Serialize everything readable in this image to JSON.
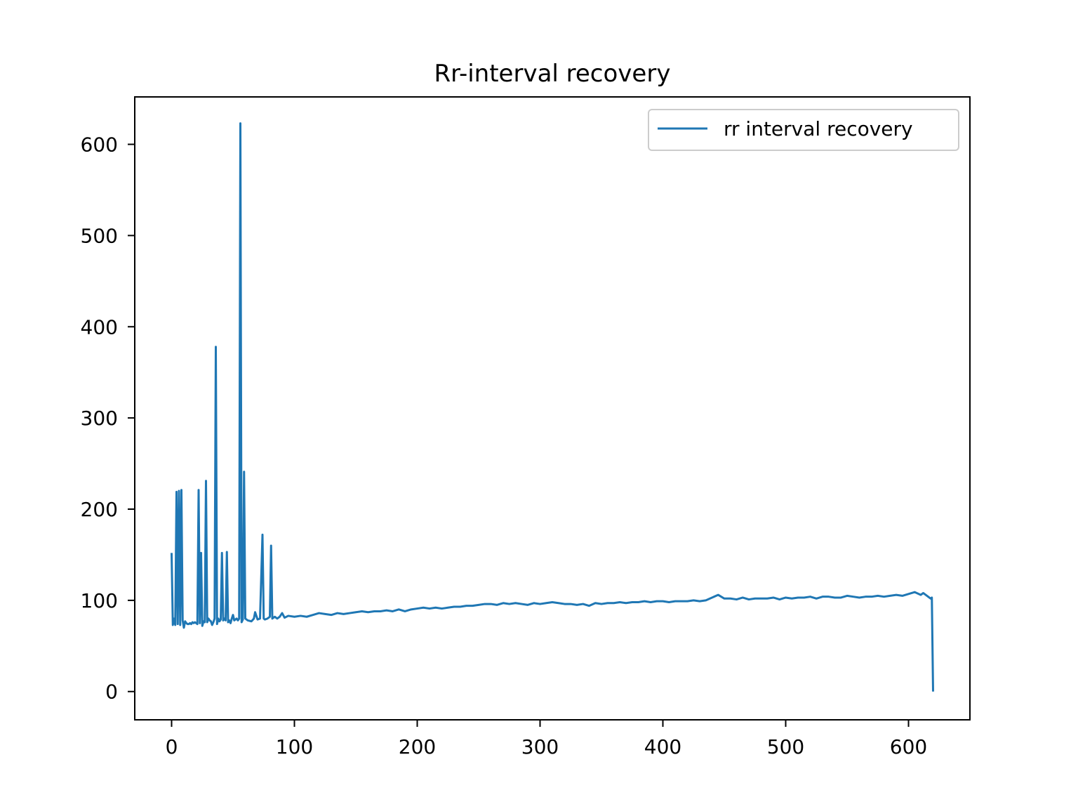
{
  "chart_data": {
    "type": "line",
    "title": "Rr-interval recovery",
    "xlabel": "",
    "ylabel": "",
    "xlim": [
      -30,
      650
    ],
    "ylim": [
      -31,
      652
    ],
    "x_ticks": [
      0,
      100,
      200,
      300,
      400,
      500,
      600
    ],
    "y_ticks": [
      0,
      100,
      200,
      300,
      400,
      500,
      600
    ],
    "x_tick_labels": [
      "0",
      "100",
      "200",
      "300",
      "400",
      "500",
      "600"
    ],
    "y_tick_labels": [
      "0",
      "100",
      "200",
      "300",
      "400",
      "500",
      "600"
    ],
    "grid": false,
    "legend_position": "top-right",
    "colors": {
      "series": "#1f77b4",
      "axes": "#000000",
      "legend_border": "#cccccc"
    },
    "series": [
      {
        "name": "rr interval recovery",
        "x": [
          0,
          1,
          2,
          3,
          4,
          5,
          6,
          7,
          8,
          9,
          10,
          11,
          12,
          13,
          14,
          15,
          16,
          17,
          18,
          19,
          20,
          21,
          22,
          23,
          24,
          25,
          26,
          27,
          28,
          29,
          30,
          31,
          32,
          33,
          34,
          35,
          36,
          37,
          38,
          39,
          40,
          41,
          42,
          43,
          44,
          45,
          46,
          47,
          48,
          49,
          50,
          51,
          52,
          53,
          54,
          55,
          56,
          57,
          58,
          59,
          60,
          62,
          65,
          67,
          68,
          70,
          72,
          74,
          75,
          76,
          78,
          80,
          81,
          82,
          84,
          86,
          88,
          90,
          92,
          95,
          100,
          105,
          110,
          115,
          120,
          125,
          130,
          135,
          140,
          145,
          150,
          155,
          160,
          165,
          170,
          175,
          180,
          185,
          190,
          195,
          200,
          205,
          210,
          215,
          220,
          225,
          230,
          235,
          240,
          245,
          250,
          255,
          260,
          265,
          270,
          275,
          280,
          285,
          290,
          295,
          300,
          305,
          310,
          315,
          320,
          325,
          330,
          335,
          340,
          345,
          350,
          355,
          360,
          365,
          370,
          375,
          380,
          385,
          390,
          395,
          400,
          405,
          410,
          415,
          420,
          425,
          430,
          435,
          440,
          445,
          450,
          455,
          460,
          465,
          470,
          475,
          480,
          485,
          490,
          495,
          500,
          505,
          510,
          515,
          520,
          525,
          530,
          535,
          540,
          545,
          550,
          555,
          560,
          565,
          570,
          575,
          580,
          585,
          590,
          595,
          600,
          605,
          610,
          612,
          614,
          616,
          618,
          619,
          620
        ],
        "values": [
          152,
          73,
          80,
          73,
          219,
          74,
          220,
          73,
          221,
          78,
          70,
          77,
          75,
          74,
          74,
          75,
          74,
          76,
          75,
          76,
          75,
          74,
          221,
          75,
          152,
          72,
          77,
          76,
          231,
          76,
          80,
          78,
          77,
          73,
          76,
          80,
          378,
          74,
          80,
          77,
          79,
          152,
          78,
          80,
          78,
          153,
          76,
          78,
          75,
          80,
          84,
          78,
          79,
          80,
          78,
          80,
          623,
          76,
          79,
          241,
          80,
          78,
          77,
          80,
          87,
          79,
          80,
          172,
          80,
          79,
          80,
          82,
          160,
          80,
          82,
          80,
          82,
          86,
          81,
          83,
          82,
          83,
          82,
          84,
          86,
          85,
          84,
          86,
          85,
          86,
          87,
          88,
          87,
          88,
          88,
          89,
          88,
          90,
          88,
          90,
          91,
          92,
          91,
          92,
          91,
          92,
          93,
          93,
          94,
          94,
          95,
          96,
          96,
          95,
          97,
          96,
          97,
          96,
          95,
          97,
          96,
          97,
          98,
          97,
          96,
          96,
          95,
          96,
          94,
          97,
          96,
          97,
          97,
          98,
          97,
          98,
          98,
          99,
          98,
          99,
          99,
          98,
          99,
          99,
          99,
          100,
          99,
          100,
          103,
          106,
          102,
          102,
          101,
          103,
          101,
          102,
          102,
          102,
          103,
          101,
          103,
          102,
          103,
          103,
          104,
          102,
          104,
          104,
          103,
          103,
          105,
          104,
          103,
          104,
          104,
          105,
          104,
          105,
          106,
          105,
          107,
          109,
          106,
          108,
          106,
          104,
          102,
          103,
          0
        ]
      }
    ]
  }
}
